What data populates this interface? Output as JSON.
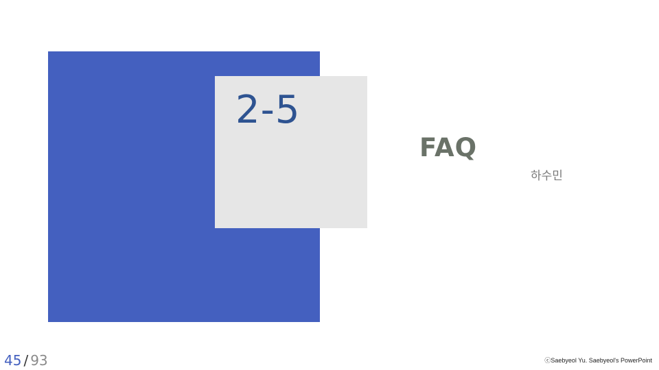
{
  "slide": {
    "section_number": "2-5",
    "title": "FAQ",
    "presenter": "하수민",
    "page": {
      "current": "45",
      "separator": "/",
      "total": "93"
    },
    "copyright": "ⓒSaebyeol Yu. Saebyeol's PowerPoint"
  },
  "colors": {
    "accent_blue": "#4460bf",
    "card_gray": "#e6e6e6",
    "number_blue": "#2e5391",
    "title_gray": "#6a7268"
  }
}
